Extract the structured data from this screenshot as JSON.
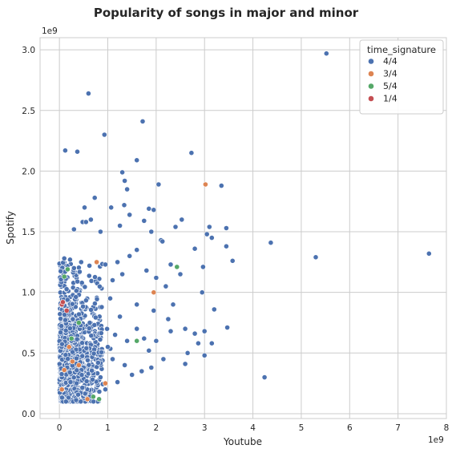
{
  "chart_data": {
    "type": "scatter",
    "title": "Popularity of songs in major and minor",
    "xlabel": "Youtube",
    "ylabel": "Spotify",
    "x_offset_label": "1e9",
    "y_offset_label": "1e9",
    "xlim": [
      -0.4,
      8.0
    ],
    "ylim": [
      -0.04,
      3.1
    ],
    "x_ticks": [
      0,
      1,
      2,
      3,
      4,
      5,
      6,
      7,
      8
    ],
    "y_ticks": [
      0.0,
      0.5,
      1.0,
      1.5,
      2.0,
      2.5,
      3.0
    ],
    "x_tick_labels": [
      "0",
      "1",
      "2",
      "3",
      "4",
      "5",
      "6",
      "7",
      "8"
    ],
    "y_tick_labels": [
      "0.0",
      "0.5",
      "1.0",
      "1.5",
      "2.0",
      "2.5",
      "3.0"
    ],
    "grid": true,
    "legend": {
      "title": "time_signature",
      "placement": "top-right"
    },
    "series": [
      {
        "name": "4/4",
        "color": "#4c72b0",
        "points": [
          [
            5.52,
            2.97
          ],
          [
            0.6,
            2.64
          ],
          [
            1.72,
            2.41
          ],
          [
            0.93,
            2.3
          ],
          [
            0.12,
            2.17
          ],
          [
            0.37,
            2.16
          ],
          [
            2.73,
            2.15
          ],
          [
            1.6,
            2.09
          ],
          [
            1.3,
            1.99
          ],
          [
            1.35,
            1.92
          ],
          [
            2.05,
            1.89
          ],
          [
            3.35,
            1.88
          ],
          [
            1.4,
            1.85
          ],
          [
            0.73,
            1.78
          ],
          [
            1.34,
            1.72
          ],
          [
            0.52,
            1.7
          ],
          [
            1.85,
            1.69
          ],
          [
            1.95,
            1.68
          ],
          [
            1.07,
            1.7
          ],
          [
            1.45,
            1.64
          ],
          [
            0.65,
            1.6
          ],
          [
            0.48,
            1.58
          ],
          [
            0.55,
            1.58
          ],
          [
            2.53,
            1.6
          ],
          [
            2.4,
            1.54
          ],
          [
            3.1,
            1.54
          ],
          [
            3.45,
            1.53
          ],
          [
            1.75,
            1.59
          ],
          [
            1.25,
            1.55
          ],
          [
            1.9,
            1.5
          ],
          [
            0.3,
            1.52
          ],
          [
            0.85,
            1.5
          ],
          [
            3.05,
            1.48
          ],
          [
            3.15,
            1.45
          ],
          [
            4.37,
            1.41
          ],
          [
            2.1,
            1.43
          ],
          [
            2.13,
            1.42
          ],
          [
            3.45,
            1.38
          ],
          [
            2.8,
            1.36
          ],
          [
            5.3,
            1.29
          ],
          [
            3.58,
            1.26
          ],
          [
            2.97,
            1.21
          ],
          [
            7.64,
            1.32
          ],
          [
            2.3,
            1.23
          ],
          [
            1.2,
            1.25
          ],
          [
            1.45,
            1.3
          ],
          [
            1.8,
            1.18
          ],
          [
            1.6,
            1.35
          ],
          [
            0.95,
            1.23
          ],
          [
            0.1,
            1.28
          ],
          [
            0.22,
            1.27
          ],
          [
            0.45,
            1.25
          ],
          [
            0.62,
            1.22
          ],
          [
            0.3,
            1.2
          ],
          [
            1.1,
            1.1
          ],
          [
            1.3,
            1.15
          ],
          [
            2.0,
            1.12
          ],
          [
            2.2,
            1.05
          ],
          [
            2.5,
            1.15
          ],
          [
            3.2,
            0.86
          ],
          [
            2.95,
            1.0
          ],
          [
            2.35,
            0.9
          ],
          [
            1.95,
            0.85
          ],
          [
            1.6,
            0.9
          ],
          [
            1.05,
            0.95
          ],
          [
            2.25,
            0.78
          ],
          [
            2.6,
            0.7
          ],
          [
            2.8,
            0.66
          ],
          [
            3.0,
            0.68
          ],
          [
            3.15,
            0.58
          ],
          [
            3.47,
            0.71
          ],
          [
            2.87,
            0.58
          ],
          [
            2.3,
            0.68
          ],
          [
            2.0,
            0.6
          ],
          [
            1.85,
            0.52
          ],
          [
            2.65,
            0.5
          ],
          [
            3.0,
            0.48
          ],
          [
            2.6,
            0.41
          ],
          [
            2.15,
            0.45
          ],
          [
            1.9,
            0.38
          ],
          [
            1.5,
            0.32
          ],
          [
            1.2,
            0.26
          ],
          [
            0.95,
            0.2
          ],
          [
            4.24,
            0.3
          ],
          [
            1.7,
            0.35
          ],
          [
            1.35,
            0.4
          ],
          [
            1.1,
            0.45
          ],
          [
            1.0,
            0.55
          ],
          [
            1.4,
            0.6
          ],
          [
            1.6,
            0.7
          ],
          [
            1.25,
            0.8
          ],
          [
            0.85,
            0.3
          ],
          [
            1.15,
            0.65
          ],
          [
            0.8,
            0.42
          ],
          [
            1.75,
            0.62
          ]
        ],
        "dense_cluster": {
          "description_points_generated": true,
          "count": 1150,
          "x_range": [
            0.0,
            0.9
          ],
          "y_range": [
            0.1,
            1.25
          ],
          "concentration_y": 0.45
        }
      },
      {
        "name": "3/4",
        "color": "#dd8452",
        "points": [
          [
            3.02,
            1.89
          ],
          [
            0.77,
            1.25
          ],
          [
            1.95,
            1.0
          ],
          [
            0.1,
            0.36
          ],
          [
            0.27,
            0.43
          ],
          [
            0.58,
            0.12
          ],
          [
            0.95,
            0.25
          ],
          [
            0.2,
            0.55
          ],
          [
            0.4,
            0.4
          ],
          [
            0.05,
            0.2
          ]
        ]
      },
      {
        "name": "5/4",
        "color": "#55a868",
        "points": [
          [
            2.43,
            1.21
          ],
          [
            0.17,
            1.19
          ],
          [
            0.1,
            1.13
          ],
          [
            0.82,
            0.12
          ],
          [
            0.7,
            0.14
          ],
          [
            1.6,
            0.6
          ],
          [
            0.25,
            0.62
          ],
          [
            0.4,
            0.75
          ]
        ]
      },
      {
        "name": "1/4",
        "color": "#c44e52",
        "points": [
          [
            0.05,
            0.9
          ],
          [
            0.07,
            0.92
          ],
          [
            0.15,
            0.85
          ]
        ]
      }
    ]
  }
}
